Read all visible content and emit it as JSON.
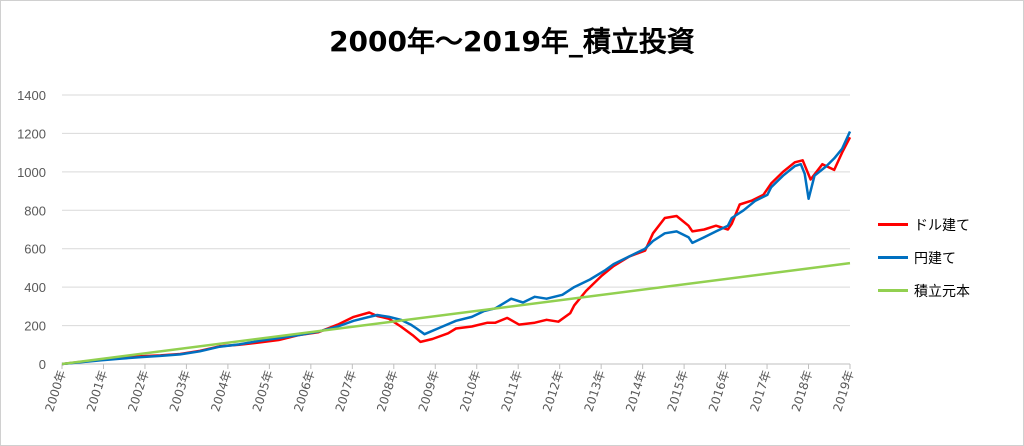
{
  "chart_data": {
    "type": "line",
    "title": "2000年～2019年_積立投資",
    "xlabel": "",
    "ylabel": "",
    "ylim": [
      0,
      1400
    ],
    "yticks": [
      0,
      200,
      400,
      600,
      800,
      1000,
      1200,
      1400
    ],
    "x_categories": [
      "2000年",
      "2001年",
      "2002年",
      "2003年",
      "2004年",
      "2005年",
      "2006年",
      "2007年",
      "2008年",
      "2009年",
      "2010年",
      "2011年",
      "2012年",
      "2013年",
      "2014年",
      "2015年",
      "2016年",
      "2017年",
      "2018年",
      "2019年"
    ],
    "grid": true,
    "legend_position": "right",
    "series": [
      {
        "name": "ドル建て",
        "color": "#ff0000",
        "points": [
          [
            2000.0,
            0
          ],
          [
            2000.5,
            12
          ],
          [
            2001.0,
            22
          ],
          [
            2001.5,
            32
          ],
          [
            2002.0,
            40
          ],
          [
            2002.5,
            45
          ],
          [
            2003.0,
            52
          ],
          [
            2003.5,
            68
          ],
          [
            2004.0,
            92
          ],
          [
            2004.5,
            100
          ],
          [
            2005.0,
            112
          ],
          [
            2005.5,
            125
          ],
          [
            2006.0,
            150
          ],
          [
            2006.5,
            165
          ],
          [
            2007.0,
            205
          ],
          [
            2007.4,
            245
          ],
          [
            2007.8,
            268
          ],
          [
            2008.0,
            250
          ],
          [
            2008.3,
            235
          ],
          [
            2008.6,
            195
          ],
          [
            2008.9,
            150
          ],
          [
            2009.1,
            115
          ],
          [
            2009.4,
            130
          ],
          [
            2009.8,
            160
          ],
          [
            2010.0,
            185
          ],
          [
            2010.4,
            195
          ],
          [
            2010.8,
            215
          ],
          [
            2011.0,
            215
          ],
          [
            2011.3,
            240
          ],
          [
            2011.6,
            205
          ],
          [
            2012.0,
            215
          ],
          [
            2012.3,
            230
          ],
          [
            2012.6,
            220
          ],
          [
            2012.9,
            265
          ],
          [
            2013.0,
            305
          ],
          [
            2013.3,
            380
          ],
          [
            2013.7,
            460
          ],
          [
            2014.0,
            510
          ],
          [
            2014.4,
            560
          ],
          [
            2014.8,
            590
          ],
          [
            2015.0,
            680
          ],
          [
            2015.3,
            760
          ],
          [
            2015.6,
            770
          ],
          [
            2015.9,
            720
          ],
          [
            2016.0,
            690
          ],
          [
            2016.3,
            700
          ],
          [
            2016.6,
            720
          ],
          [
            2016.9,
            700
          ],
          [
            2017.0,
            730
          ],
          [
            2017.2,
            830
          ],
          [
            2017.5,
            850
          ],
          [
            2017.8,
            880
          ],
          [
            2018.0,
            940
          ],
          [
            2018.3,
            1000
          ],
          [
            2018.6,
            1050
          ],
          [
            2018.8,
            1060
          ],
          [
            2019.0,
            960
          ],
          [
            2019.3,
            1040
          ],
          [
            2019.6,
            1010
          ],
          [
            2019.8,
            1100
          ],
          [
            2020.0,
            1180
          ]
        ]
      },
      {
        "name": "円建て",
        "color": "#0070c0",
        "points": [
          [
            2000.0,
            0
          ],
          [
            2000.5,
            10
          ],
          [
            2001.0,
            20
          ],
          [
            2001.5,
            28
          ],
          [
            2002.0,
            36
          ],
          [
            2002.5,
            42
          ],
          [
            2003.0,
            50
          ],
          [
            2003.5,
            66
          ],
          [
            2004.0,
            90
          ],
          [
            2004.5,
            102
          ],
          [
            2005.0,
            120
          ],
          [
            2005.5,
            135
          ],
          [
            2006.0,
            150
          ],
          [
            2006.5,
            168
          ],
          [
            2007.0,
            195
          ],
          [
            2007.4,
            225
          ],
          [
            2007.8,
            245
          ],
          [
            2008.0,
            255
          ],
          [
            2008.3,
            245
          ],
          [
            2008.6,
            230
          ],
          [
            2008.85,
            205
          ],
          [
            2009.0,
            185
          ],
          [
            2009.2,
            155
          ],
          [
            2009.6,
            190
          ],
          [
            2010.0,
            225
          ],
          [
            2010.4,
            245
          ],
          [
            2010.7,
            275
          ],
          [
            2011.0,
            290
          ],
          [
            2011.4,
            340
          ],
          [
            2011.7,
            320
          ],
          [
            2012.0,
            350
          ],
          [
            2012.3,
            340
          ],
          [
            2012.7,
            360
          ],
          [
            2013.0,
            400
          ],
          [
            2013.4,
            440
          ],
          [
            2013.8,
            490
          ],
          [
            2014.0,
            520
          ],
          [
            2014.4,
            560
          ],
          [
            2014.8,
            600
          ],
          [
            2015.0,
            640
          ],
          [
            2015.3,
            680
          ],
          [
            2015.6,
            690
          ],
          [
            2015.9,
            660
          ],
          [
            2016.0,
            630
          ],
          [
            2016.3,
            660
          ],
          [
            2016.6,
            690
          ],
          [
            2016.9,
            720
          ],
          [
            2017.0,
            760
          ],
          [
            2017.3,
            800
          ],
          [
            2017.6,
            850
          ],
          [
            2017.9,
            880
          ],
          [
            2018.0,
            920
          ],
          [
            2018.3,
            980
          ],
          [
            2018.6,
            1030
          ],
          [
            2018.75,
            1040
          ],
          [
            2018.85,
            990
          ],
          [
            2018.95,
            860
          ],
          [
            2019.1,
            980
          ],
          [
            2019.4,
            1030
          ],
          [
            2019.6,
            1070
          ],
          [
            2019.8,
            1120
          ],
          [
            2020.0,
            1210
          ]
        ]
      },
      {
        "name": "積立元本",
        "color": "#92d050",
        "points": [
          [
            2000.0,
            0
          ],
          [
            2020.0,
            525
          ]
        ]
      }
    ]
  }
}
